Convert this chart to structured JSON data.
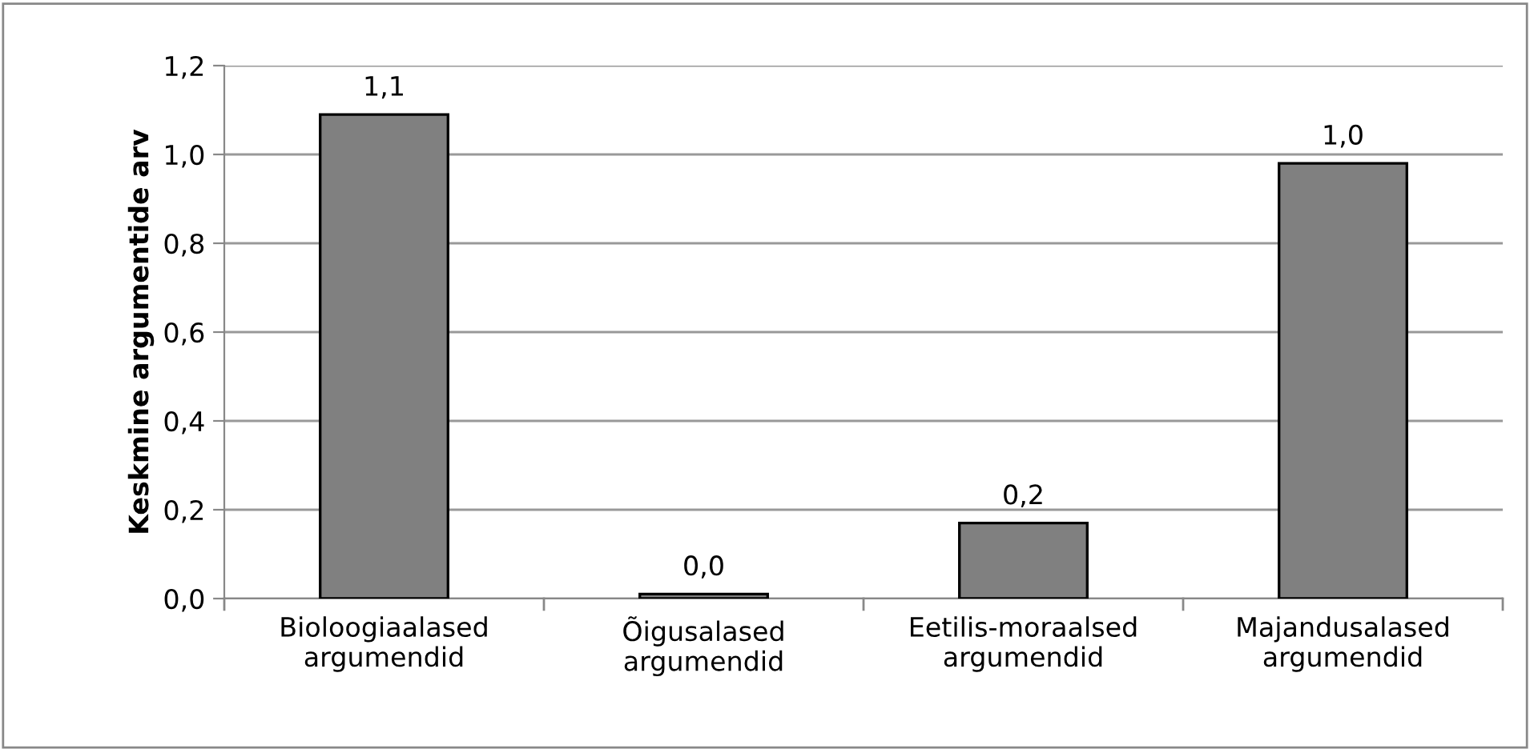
{
  "chart_data": {
    "type": "bar",
    "ylabel": "Keskmine argumentide arv",
    "categories": [
      "Bioloogiaalased\nargumendid",
      "Õigusalased\nargumendid",
      "Eetilis-moraalsed\nargumendid",
      "Majandusalased\nargumendid"
    ],
    "values": [
      1.09,
      0.01,
      0.17,
      0.98
    ],
    "value_labels": [
      "1,1",
      "0,0",
      "0,2",
      "1,0"
    ],
    "color": "#808080",
    "ylim": [
      0,
      1.2
    ],
    "yticks": [
      {
        "value": 0,
        "label": "0,0"
      },
      {
        "value": 0.2,
        "label": "0,2"
      },
      {
        "value": 0.4,
        "label": "0,4"
      },
      {
        "value": 0.6,
        "label": "0,6"
      },
      {
        "value": 0.8,
        "label": "0,8"
      },
      {
        "value": 1.0,
        "label": "1,0"
      },
      {
        "value": 1.2,
        "label": "1,2"
      }
    ],
    "grid": "y",
    "legend": false
  }
}
